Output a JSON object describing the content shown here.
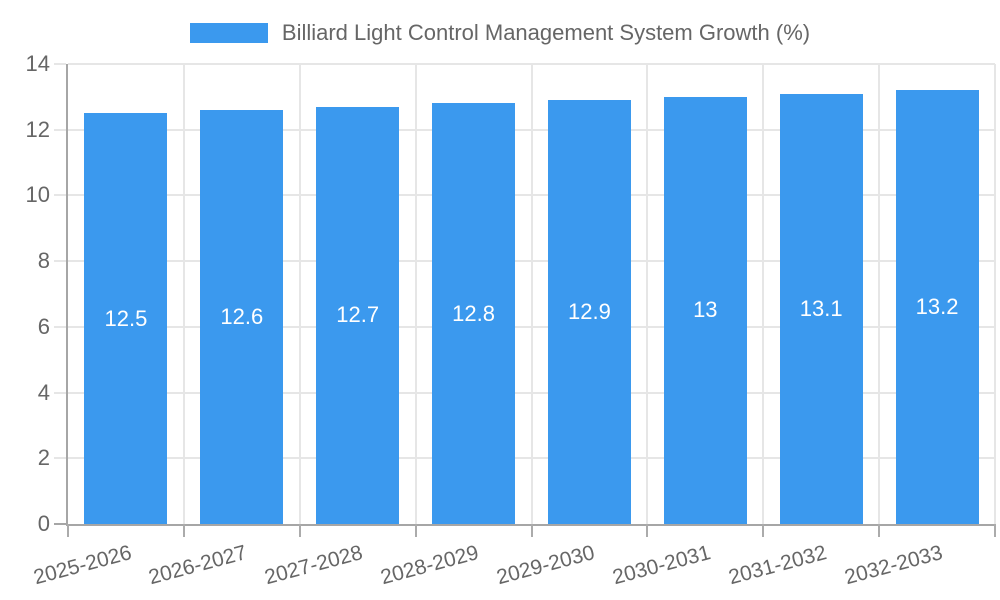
{
  "chart_data": {
    "type": "bar",
    "title": "Billiard Light Control Management System Growth (%)",
    "legend_position": "top",
    "categories": [
      "2025-2026",
      "2026-2027",
      "2027-2028",
      "2028-2029",
      "2029-2030",
      "2030-2031",
      "2031-2032",
      "2032-2033"
    ],
    "series": [
      {
        "name": "Billiard Light Control Management System Growth (%)",
        "values": [
          12.5,
          12.6,
          12.7,
          12.8,
          12.9,
          13,
          13.1,
          13.2
        ],
        "labels": [
          "12.5",
          "12.6",
          "12.7",
          "12.8",
          "12.9",
          "13",
          "13.1",
          "13.2"
        ]
      }
    ],
    "xlabel": "",
    "ylabel": "",
    "ylim": [
      0,
      14
    ],
    "yticks": [
      0,
      2,
      4,
      6,
      8,
      10,
      12,
      14
    ],
    "grid": {
      "horizontal": true,
      "vertical": true
    },
    "colors": {
      "bar": "#3B99EE",
      "grid": "#e6e6e6",
      "axis": "#a6a6a6",
      "tick": "#ababab",
      "text": "#666666",
      "bar_label": "#ffffff",
      "background": "#ffffff"
    }
  }
}
